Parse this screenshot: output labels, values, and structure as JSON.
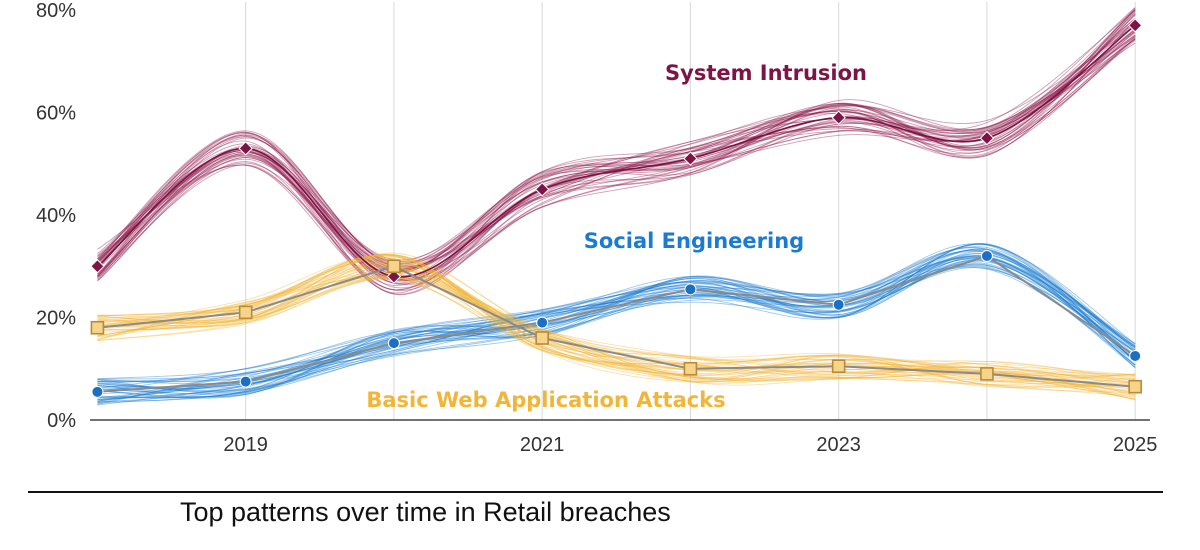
{
  "chart_data": {
    "type": "line",
    "title": "Top patterns over time in Retail breaches",
    "x": [
      2018,
      2019,
      2020,
      2021,
      2022,
      2023,
      2024,
      2025
    ],
    "xticks": [
      "2019",
      "2021",
      "2023",
      "2025"
    ],
    "xtick_values": [
      2019,
      2021,
      2023,
      2025
    ],
    "xlim": [
      2017.95,
      2025.1
    ],
    "ylim": [
      0,
      80
    ],
    "yticks": [
      "0%",
      "20%",
      "40%",
      "60%",
      "80%"
    ],
    "ytick_values": [
      0,
      20,
      40,
      60,
      80
    ],
    "grid": true,
    "series": [
      {
        "name": "System Intrusion",
        "color": "#8e1a4d",
        "marker": "diamond",
        "values": [
          30,
          53,
          28,
          45,
          51,
          59,
          55,
          77
        ]
      },
      {
        "name": "Social Engineering",
        "color": "#1a7bd0",
        "marker": "circle",
        "values": [
          5.5,
          7.5,
          15,
          19,
          25.5,
          22.5,
          32,
          12.5
        ]
      },
      {
        "name": "Basic Web Application Attacks",
        "color": "#f2b535",
        "marker": "square",
        "values": [
          18,
          21,
          30,
          16,
          10,
          10.5,
          9,
          6.5
        ]
      }
    ]
  }
}
